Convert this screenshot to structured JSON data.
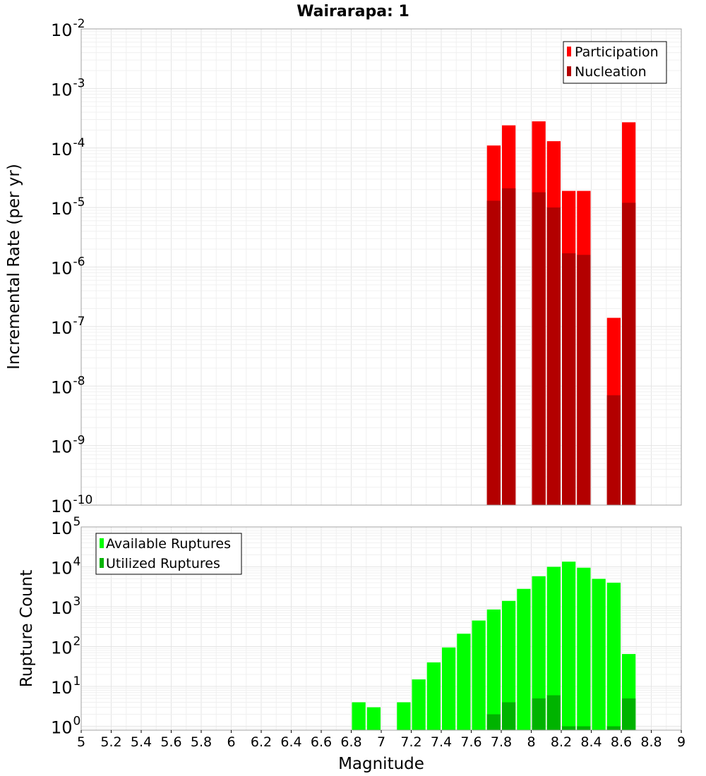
{
  "chart_data": [
    {
      "type": "bar",
      "title": "Wairarapa: 1",
      "xlabel": "Magnitude",
      "ylabel": "Incremental Rate (per yr)",
      "yscale": "log",
      "xlim": [
        5,
        9
      ],
      "ylim": [
        1e-10,
        0.01
      ],
      "y_tick_exponents": [
        "-10",
        "-9",
        "-8",
        "-7",
        "-6",
        "-5",
        "-4",
        "-3",
        "-2"
      ],
      "bin_width": 0.1,
      "legend": {
        "position": "top-right",
        "entries": [
          {
            "label": "Participation",
            "color": "#ff0000"
          },
          {
            "label": "Nucleation",
            "color": "#b30000"
          }
        ]
      },
      "series": [
        {
          "name": "Participation",
          "color": "#ff0000",
          "x": [
            7.75,
            7.85,
            8.05,
            8.15,
            8.25,
            8.35,
            8.55,
            8.65
          ],
          "values": [
            0.00011,
            0.00024,
            0.00028,
            0.00013,
            1.9e-05,
            1.9e-05,
            1.4e-07,
            0.00027
          ]
        },
        {
          "name": "Nucleation",
          "color": "#b30000",
          "x": [
            7.75,
            7.85,
            8.05,
            8.15,
            8.25,
            8.35,
            8.55,
            8.65
          ],
          "values": [
            1.3e-05,
            2.1e-05,
            1.8e-05,
            1e-05,
            1.7e-06,
            1.6e-06,
            7e-09,
            1.2e-05
          ]
        }
      ]
    },
    {
      "type": "bar",
      "xlabel": "Magnitude",
      "ylabel": "Rupture Count",
      "yscale": "log",
      "xlim": [
        5,
        9
      ],
      "ylim": [
        0.8,
        100000
      ],
      "y_tick_exponents": [
        "0",
        "1",
        "2",
        "3",
        "4",
        "5"
      ],
      "x_tick_labels": [
        "5",
        "5.2",
        "5.4",
        "5.6",
        "5.8",
        "6",
        "6.2",
        "6.4",
        "6.6",
        "6.8",
        "7",
        "7.2",
        "7.4",
        "7.6",
        "7.8",
        "8",
        "8.2",
        "8.4",
        "8.6",
        "8.8",
        "9"
      ],
      "bin_width": 0.1,
      "legend": {
        "position": "top-left",
        "entries": [
          {
            "label": "Available Ruptures",
            "color": "#00ff00"
          },
          {
            "label": "Utilized Ruptures",
            "color": "#00b300"
          }
        ]
      },
      "series": [
        {
          "name": "Available Ruptures",
          "color": "#00ff00",
          "x": [
            6.85,
            6.95,
            7.15,
            7.25,
            7.35,
            7.45,
            7.55,
            7.65,
            7.75,
            7.85,
            7.95,
            8.05,
            8.15,
            8.25,
            8.35,
            8.45,
            8.55,
            8.65
          ],
          "values": [
            4,
            3,
            4,
            15,
            40,
            95,
            210,
            450,
            850,
            1400,
            2800,
            5800,
            10000,
            13500,
            9500,
            5000,
            4000,
            65
          ]
        },
        {
          "name": "Utilized Ruptures",
          "color": "#00b300",
          "x": [
            7.75,
            7.85,
            8.05,
            8.15,
            8.25,
            8.35,
            8.55,
            8.65
          ],
          "values": [
            2,
            4,
            5,
            6,
            1,
            1,
            1,
            5
          ]
        }
      ]
    }
  ]
}
